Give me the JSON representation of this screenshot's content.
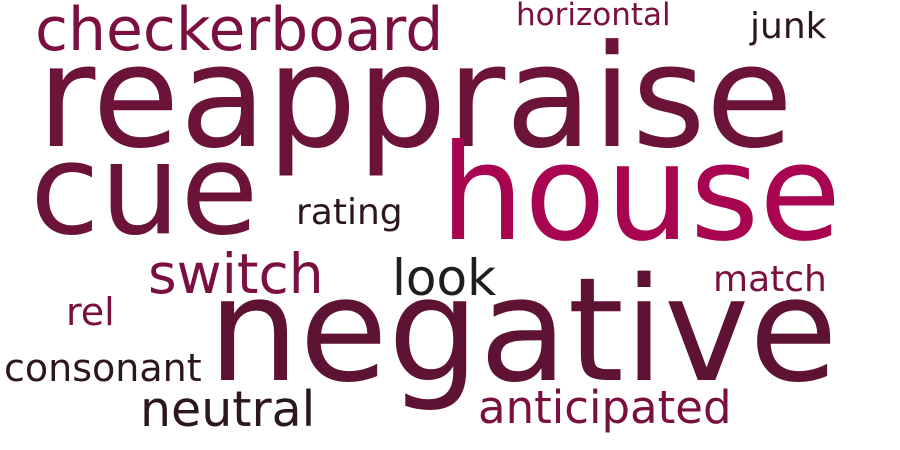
{
  "word_cloud": {
    "background": "#ffffff",
    "words": [
      {
        "text": "reappraise",
        "color": "#6b1338"
      },
      {
        "text": "negative",
        "color": "#5e1334"
      },
      {
        "text": "house",
        "color": "#a8044f"
      },
      {
        "text": "cue",
        "color": "#6b1338"
      },
      {
        "text": "checkerboard",
        "color": "#7a1040"
      },
      {
        "text": "switch",
        "color": "#7a1040"
      },
      {
        "text": "look",
        "color": "#1d1e1e"
      },
      {
        "text": "neutral",
        "color": "#2c1620"
      },
      {
        "text": "anticipated",
        "color": "#7a1040"
      },
      {
        "text": "consonant",
        "color": "#2c1620"
      },
      {
        "text": "rating",
        "color": "#2c1620"
      },
      {
        "text": "rel",
        "color": "#7a1040"
      },
      {
        "text": "junk",
        "color": "#2c1620"
      },
      {
        "text": "match",
        "color": "#7a1040"
      },
      {
        "text": "horizontal",
        "color": "#7a1040"
      }
    ]
  }
}
